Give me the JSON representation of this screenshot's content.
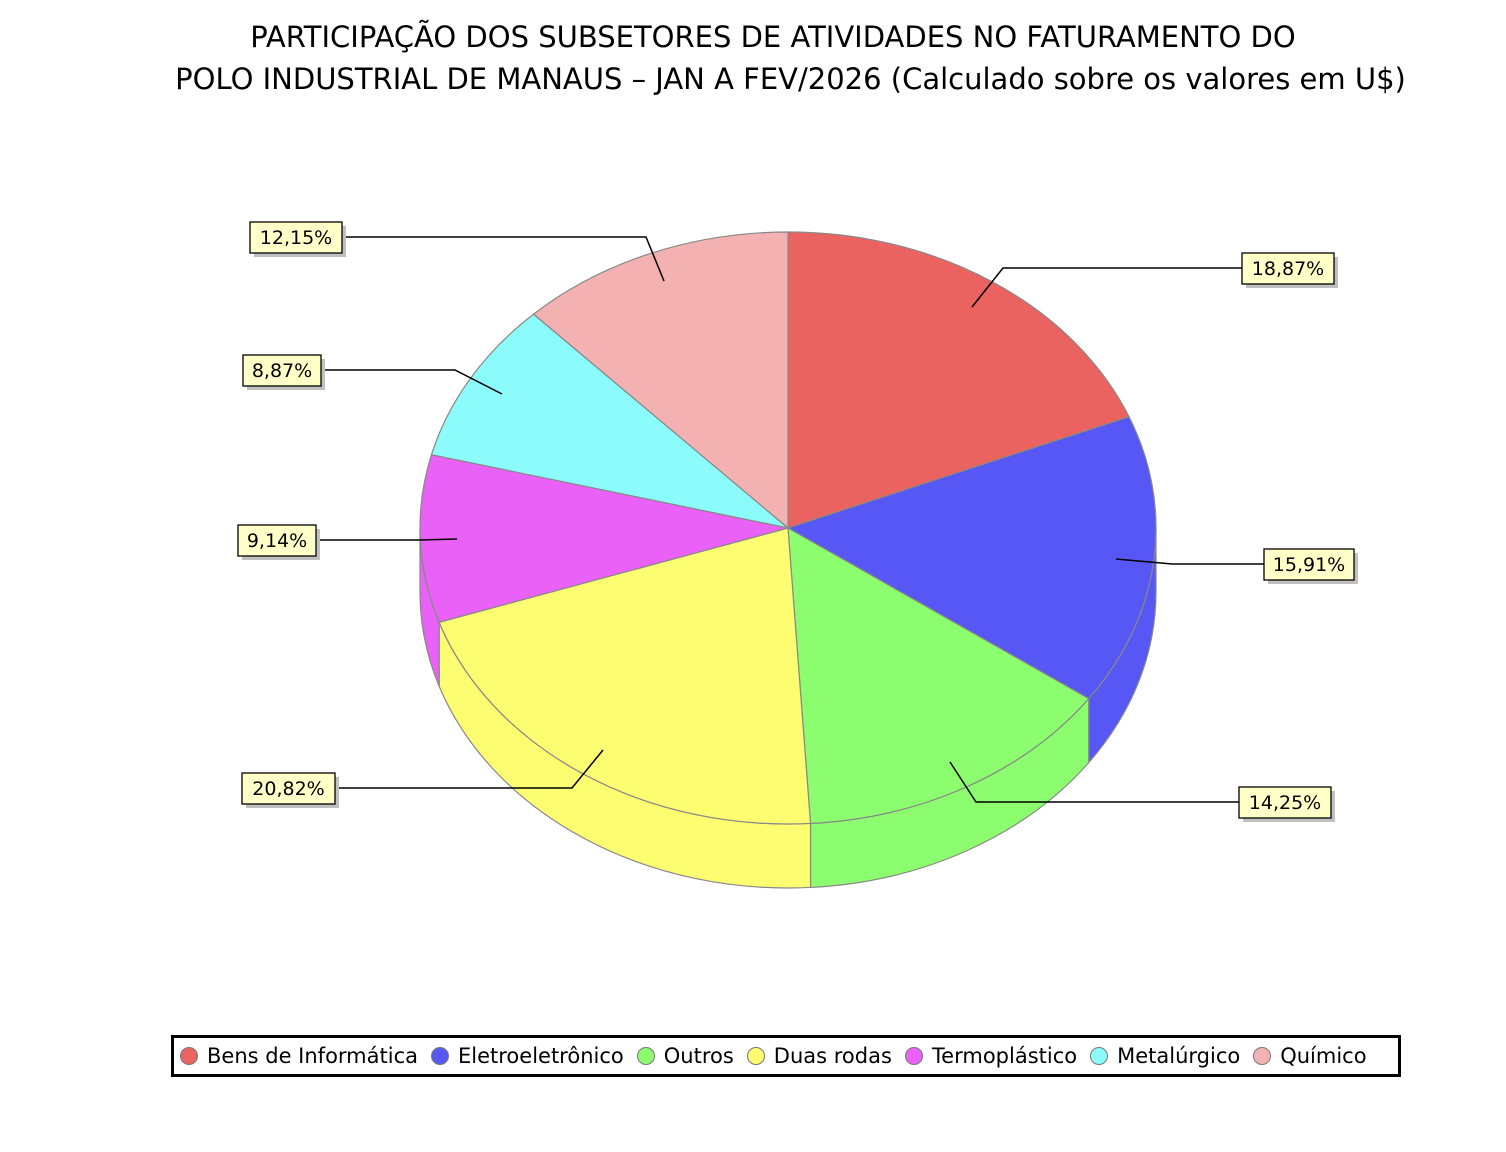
{
  "title": {
    "line1": "PARTICIPAÇÃO DOS SUBSETORES DE ATIVIDADES NO FATURAMENTO DO",
    "line2": "POLO INDUSTRIAL DE MANAUS – JAN A FEV/2026 (Calculado sobre os valores em U$)"
  },
  "chart_data": {
    "type": "pie",
    "title": "PARTICIPAÇÃO DOS SUBSETORES DE ATIVIDADES NO FATURAMENTO DO POLO INDUSTRIAL DE MANAUS – JAN A FEV/2026 (Calculado sobre os valores em U$)",
    "style": "3d",
    "categories": [
      "Bens de Informática",
      "Eletroeletrônico",
      "Outros",
      "Duas rodas",
      "Termoplástico",
      "Metalúrgico",
      "Químico"
    ],
    "values": [
      18.87,
      15.91,
      14.25,
      20.82,
      9.14,
      8.87,
      12.15
    ],
    "labels": [
      "18,87%",
      "15,91%",
      "14,25%",
      "20,82%",
      "9,14%",
      "8,87%",
      "12,15%"
    ],
    "colors": [
      "#ea6360",
      "#5657f5",
      "#8bfd6e",
      "#fdfd72",
      "#e961f7",
      "#8bfbfc",
      "#f3b2b1"
    ],
    "legend_position": "bottom",
    "start_angle": "12 o'clock, clockwise"
  },
  "legend": {
    "items": [
      {
        "label": "Bens de Informática",
        "color": "#ea6360"
      },
      {
        "label": "Eletroeletrônico",
        "color": "#5657f5"
      },
      {
        "label": "Outros",
        "color": "#8bfd6e"
      },
      {
        "label": "Duas rodas",
        "color": "#fdfd72"
      },
      {
        "label": "Termoplástico",
        "color": "#e961f7"
      },
      {
        "label": "Metalúrgico",
        "color": "#8bfbfc"
      },
      {
        "label": "Químico",
        "color": "#f3b2b1"
      }
    ]
  }
}
